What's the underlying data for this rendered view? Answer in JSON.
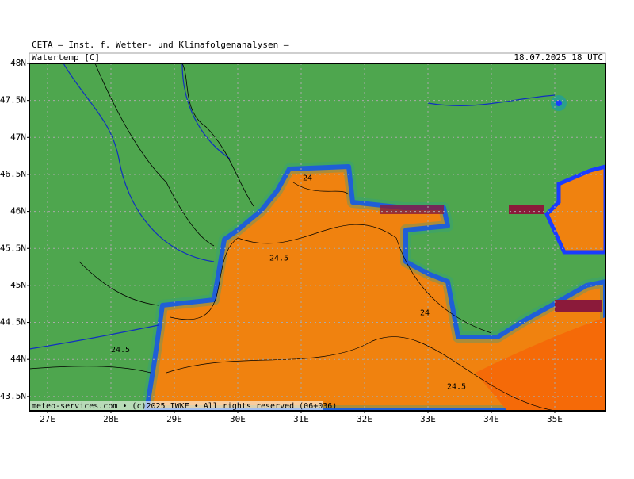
{
  "header": {
    "institute": "CETA — Inst. f. Wetter- und Klimafolgenanalysen —",
    "variable": "Watertemp [C]",
    "valid_time": "18.07.2025 18 UTC"
  },
  "map": {
    "lat_ticks": [
      {
        "value": 48,
        "label": "48N"
      },
      {
        "value": 47.5,
        "label": "47.5N"
      },
      {
        "value": 47,
        "label": "47N"
      },
      {
        "value": 46.5,
        "label": "46.5N"
      },
      {
        "value": 46,
        "label": "46N"
      },
      {
        "value": 45.5,
        "label": "45.5N"
      },
      {
        "value": 45,
        "label": "45N"
      },
      {
        "value": 44.5,
        "label": "44.5N"
      },
      {
        "value": 44,
        "label": "44N"
      },
      {
        "value": 43.5,
        "label": "43.5N"
      }
    ],
    "lon_ticks": [
      {
        "value": 27,
        "label": "27E"
      },
      {
        "value": 28,
        "label": "28E"
      },
      {
        "value": 29,
        "label": "29E"
      },
      {
        "value": 30,
        "label": "30E"
      },
      {
        "value": 31,
        "label": "31E"
      },
      {
        "value": 32,
        "label": "32E"
      },
      {
        "value": 33,
        "label": "33E"
      },
      {
        "value": 34,
        "label": "34E"
      },
      {
        "value": 35,
        "label": "35E"
      }
    ],
    "contour_labels": [
      {
        "text": "24",
        "lon": 31.1,
        "lat": 46.45
      },
      {
        "text": "24.5",
        "lon": 30.65,
        "lat": 45.37
      },
      {
        "text": "24",
        "lon": 32.95,
        "lat": 44.63
      },
      {
        "text": "24.5",
        "lon": 28.15,
        "lat": 44.13
      },
      {
        "text": "24.5",
        "lon": 33.45,
        "lat": 43.63
      }
    ]
  },
  "footer": "meteo-services.com • (c)2025 IWKF • All rights reserved (06+036)"
}
